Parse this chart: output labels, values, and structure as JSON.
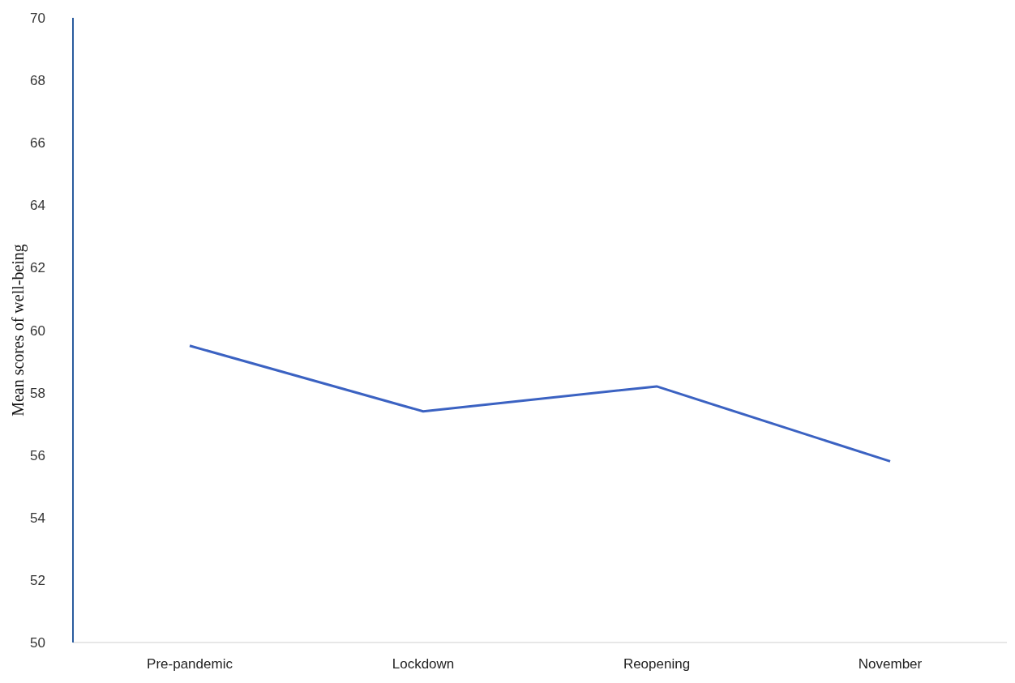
{
  "chart_data": {
    "type": "line",
    "ylabel": "Mean scores of well-being",
    "categories": [
      "Pre-pandemic",
      "Lockdown",
      "Reopening",
      "November"
    ],
    "series": [
      {
        "color": "#3b62c2",
        "values": [
          59.5,
          57.4,
          58.2,
          55.8
        ]
      }
    ],
    "ylim": [
      50,
      70
    ],
    "yticks": [
      50,
      52,
      54,
      56,
      58,
      60,
      62,
      64,
      66,
      68,
      70
    ],
    "grid": false,
    "legend": false,
    "marker": "none",
    "line_style": "solid"
  }
}
